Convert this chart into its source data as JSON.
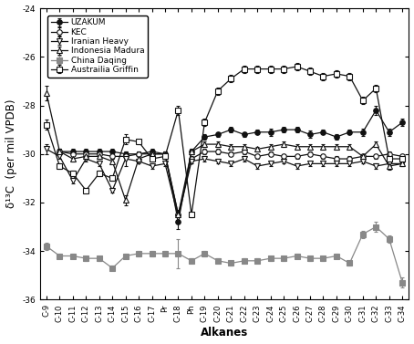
{
  "x_labels": [
    "C-9",
    "C-10",
    "C-11",
    "C-12",
    "C-13",
    "C-14",
    "C-15",
    "C-16",
    "C-17",
    "Pr",
    "C-18",
    "Ph",
    "C-19",
    "C-20",
    "C-21",
    "C-22",
    "C-23",
    "C-24",
    "C-25",
    "C-26",
    "C-27",
    "C-28",
    "C-29",
    "C-30",
    "C-31",
    "C-32",
    "C-33",
    "C-34"
  ],
  "series": [
    {
      "name": "UZAKUM",
      "marker": "o",
      "fillstyle": "full",
      "color": "#111111",
      "values": [
        null,
        -29.9,
        -29.9,
        -29.9,
        -29.9,
        -29.9,
        -30.0,
        -30.0,
        -29.9,
        -30.0,
        -32.8,
        -29.9,
        -29.3,
        -29.2,
        -29.0,
        -29.2,
        -29.1,
        -29.1,
        -29.0,
        -29.0,
        -29.2,
        -29.1,
        -29.3,
        -29.1,
        -29.1,
        -28.2,
        -29.1,
        -28.7
      ],
      "yerr": [
        null,
        0.1,
        0.1,
        0.1,
        0.1,
        0.1,
        0.1,
        0.1,
        0.1,
        0.1,
        0.3,
        0.1,
        0.1,
        0.1,
        0.1,
        0.1,
        0.1,
        0.15,
        0.1,
        0.1,
        0.15,
        0.1,
        0.1,
        0.1,
        0.15,
        0.2,
        0.15,
        0.15
      ]
    },
    {
      "name": "KEC",
      "marker": "o",
      "fillstyle": "none",
      "color": "#111111",
      "values": [
        null,
        -29.9,
        -30.0,
        -30.0,
        -30.0,
        -30.1,
        -30.1,
        -30.0,
        -30.0,
        -30.0,
        -32.5,
        -30.2,
        -29.9,
        -29.9,
        -30.0,
        -29.9,
        -30.1,
        -30.0,
        -30.1,
        -30.1,
        -30.0,
        -30.1,
        -30.2,
        -30.2,
        -30.1,
        -30.1,
        -30.0,
        -30.1
      ],
      "yerr": [
        null,
        0.1,
        0.1,
        0.1,
        0.1,
        0.1,
        0.1,
        0.1,
        0.1,
        0.1,
        0.2,
        0.1,
        0.1,
        0.1,
        0.1,
        0.1,
        0.1,
        0.1,
        0.1,
        0.1,
        0.1,
        0.1,
        0.1,
        0.1,
        0.1,
        0.1,
        0.1,
        0.1
      ]
    },
    {
      "name": "Iranian Heavy",
      "marker": "v",
      "fillstyle": "none",
      "color": "#111111",
      "values": [
        -29.8,
        -30.1,
        -31.1,
        -30.2,
        -30.4,
        -31.5,
        -30.2,
        -30.3,
        -30.5,
        -30.4,
        -32.6,
        -30.3,
        -30.2,
        -30.3,
        -30.4,
        -30.2,
        -30.5,
        -30.4,
        -30.3,
        -30.5,
        -30.4,
        -30.4,
        -30.4,
        -30.4,
        -30.3,
        -30.5,
        -30.4,
        -30.4
      ],
      "yerr": [
        0.2,
        0.1,
        0.1,
        0.1,
        0.1,
        0.1,
        0.3,
        0.1,
        0.1,
        0.1,
        0.2,
        0.1,
        0.1,
        0.1,
        0.1,
        0.1,
        0.1,
        0.1,
        0.1,
        0.1,
        0.1,
        0.1,
        0.1,
        0.1,
        0.1,
        0.1,
        0.1,
        0.1
      ]
    },
    {
      "name": "Indonesia Madura",
      "marker": "^",
      "fillstyle": "none",
      "color": "#111111",
      "values": [
        -27.5,
        -29.9,
        -30.2,
        -30.1,
        -30.1,
        -30.3,
        -31.9,
        -30.2,
        -30.0,
        -30.0,
        -32.5,
        -29.9,
        -29.6,
        -29.6,
        -29.7,
        -29.7,
        -29.8,
        -29.7,
        -29.6,
        -29.7,
        -29.7,
        -29.7,
        -29.7,
        -29.7,
        -30.1,
        -29.6,
        -30.5,
        -30.4
      ],
      "yerr": [
        0.3,
        0.1,
        0.1,
        0.1,
        0.1,
        0.1,
        0.2,
        0.1,
        0.1,
        0.1,
        0.2,
        0.1,
        0.1,
        0.1,
        0.1,
        0.1,
        0.1,
        0.1,
        0.1,
        0.1,
        0.1,
        0.1,
        0.1,
        0.1,
        0.1,
        0.1,
        0.15,
        0.1
      ]
    },
    {
      "name": "China Daqing",
      "marker": "s",
      "fillstyle": "full",
      "color": "#888888",
      "values": [
        -33.8,
        -34.2,
        -34.2,
        -34.3,
        -34.3,
        -34.7,
        -34.2,
        -34.1,
        -34.1,
        -34.1,
        -34.1,
        -34.4,
        -34.1,
        -34.4,
        -34.5,
        -34.4,
        -34.4,
        -34.3,
        -34.3,
        -34.2,
        -34.3,
        -34.3,
        -34.2,
        -34.5,
        -33.3,
        -33.0,
        -33.5,
        -35.3
      ],
      "yerr": [
        0.15,
        0.1,
        0.1,
        0.1,
        0.1,
        0.1,
        0.1,
        0.1,
        0.1,
        0.1,
        0.6,
        0.1,
        0.1,
        0.1,
        0.1,
        0.1,
        0.1,
        0.1,
        0.1,
        0.1,
        0.1,
        0.1,
        0.1,
        0.1,
        0.15,
        0.2,
        0.15,
        0.2
      ]
    },
    {
      "name": "Austrailia Griffin",
      "marker": "s",
      "fillstyle": "none",
      "color": "#111111",
      "values": [
        -28.8,
        -30.5,
        -30.8,
        -31.5,
        -30.8,
        -31.0,
        -29.4,
        -29.5,
        -30.2,
        -30.1,
        -28.2,
        -32.5,
        -28.7,
        -27.4,
        -26.9,
        -26.5,
        -26.5,
        -26.5,
        -26.5,
        -26.4,
        -26.6,
        -26.8,
        -26.7,
        -26.8,
        -27.8,
        -27.3,
        -30.2,
        -30.2
      ],
      "yerr": [
        0.2,
        0.1,
        0.1,
        0.1,
        0.1,
        0.1,
        0.2,
        0.1,
        0.1,
        0.1,
        0.2,
        0.1,
        0.15,
        0.15,
        0.15,
        0.15,
        0.15,
        0.15,
        0.15,
        0.15,
        0.15,
        0.15,
        0.15,
        0.15,
        0.15,
        0.15,
        0.15,
        0.15
      ]
    }
  ],
  "ylim": [
    -36,
    -24
  ],
  "yticks": [
    -36,
    -34,
    -32,
    -30,
    -28,
    -26,
    -24
  ],
  "ylabel": "δ¹³C  (per mil VPDB)",
  "xlabel": "Alkanes",
  "legend_loc": "upper left",
  "legend_fontsize": 6.5,
  "axis_fontsize": 8.5,
  "tick_fontsize": 6.5,
  "background_color": "#ffffff"
}
